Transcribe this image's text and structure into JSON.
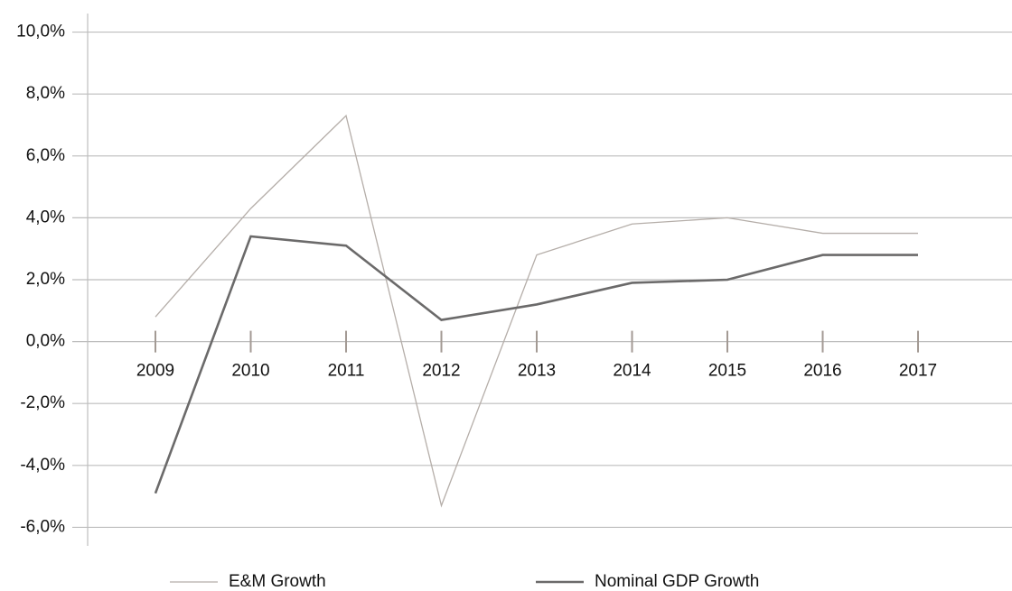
{
  "chart_data": {
    "type": "line",
    "categories": [
      "2009",
      "2010",
      "2011",
      "2012",
      "2013",
      "2014",
      "2015",
      "2016",
      "2017"
    ],
    "series": [
      {
        "name": "E&M Growth",
        "color": "#b5aea9",
        "values": [
          0.8,
          4.3,
          7.3,
          -5.3,
          2.8,
          3.8,
          4.0,
          3.5,
          3.5
        ]
      },
      {
        "name": "Nominal GDP Growth",
        "color": "#6b6a6a",
        "values": [
          -4.9,
          3.4,
          3.1,
          0.7,
          1.2,
          1.9,
          2.0,
          2.8,
          2.8
        ]
      }
    ],
    "ylim": [
      -6.6,
      10.6
    ],
    "yticks": [
      {
        "value": -6,
        "label": "-6,0%"
      },
      {
        "value": -4,
        "label": "-4,0%"
      },
      {
        "value": -2,
        "label": "-2,0%"
      },
      {
        "value": 0,
        "label": "0,0%"
      },
      {
        "value": 2,
        "label": "2,0%"
      },
      {
        "value": 4,
        "label": "4,0%"
      },
      {
        "value": 6,
        "label": "6,0%"
      },
      {
        "value": 8,
        "label": "8,0%"
      },
      {
        "value": 10,
        "label": "10,0%"
      }
    ],
    "grid": true,
    "legend": "bottom"
  }
}
